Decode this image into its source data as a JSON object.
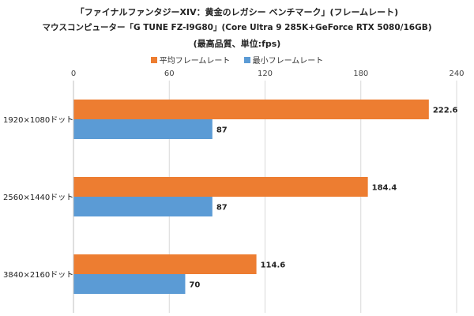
{
  "chart_data": {
    "type": "bar",
    "orientation": "horizontal",
    "title_lines": [
      "「ファイナルファンタジーXIV：黄金のレガシー ベンチマーク」(フレームレート)",
      "マウスコンピューター「G TUNE FZ-I9G80」(Core Ultra 9 285K+GeForce RTX 5080/16GB)",
      "(最高品質、単位:fps)"
    ],
    "categories": [
      "1920×1080ドット",
      "2560×1440ドット",
      "3840×2160ドット"
    ],
    "series": [
      {
        "name": "平均フレームレート",
        "values": [
          222.6,
          184.4,
          114.6
        ],
        "color": "#ed7d31"
      },
      {
        "name": "最小フレームレート",
        "values": [
          87,
          87,
          70
        ],
        "color": "#5b9bd5"
      }
    ],
    "xlim": [
      0,
      240
    ],
    "xticks": [
      0,
      60,
      120,
      180,
      240
    ],
    "legend_position": "top",
    "grid": true
  }
}
